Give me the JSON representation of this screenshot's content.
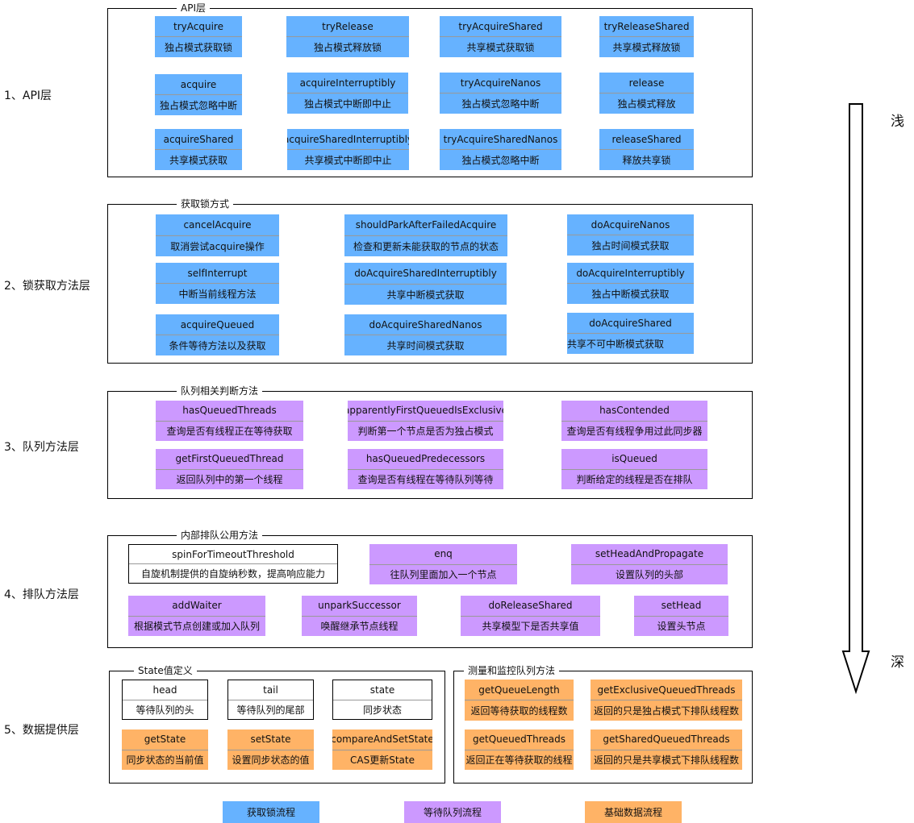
{
  "colors": {
    "acquire": "#66b2ff",
    "queue": "#cc99ff",
    "data": "#ffb366",
    "plain": "#ffffff"
  },
  "sections": [
    {
      "side_label": "1、API层",
      "frames": [
        {
          "title": "API层",
          "cards": [
            {
              "title": "tryAcquire",
              "desc": "独占模式获取锁",
              "kind": "acquire"
            },
            {
              "title": "tryRelease",
              "desc": "独占模式释放锁",
              "kind": "acquire"
            },
            {
              "title": "tryAcquireShared",
              "desc": "共享模式获取锁",
              "kind": "acquire"
            },
            {
              "title": "tryReleaseShared",
              "desc": "共享模式释放锁",
              "kind": "acquire"
            },
            {
              "title": "acquire",
              "desc": "独占模式忽略中断",
              "kind": "acquire"
            },
            {
              "title": "acquireInterruptibly",
              "desc": "独占模式中断即中止",
              "kind": "acquire"
            },
            {
              "title": "tryAcquireNanos",
              "desc": "独占模式忽略中断",
              "kind": "acquire"
            },
            {
              "title": "release",
              "desc": "独占模式释放",
              "kind": "acquire"
            },
            {
              "title": "acquireShared",
              "desc": "共享模式获取",
              "kind": "acquire"
            },
            {
              "title": "acquireSharedInterruptibly",
              "desc": "共享模式中断即中止",
              "kind": "acquire"
            },
            {
              "title": "tryAcquireSharedNanos",
              "desc": "独占模式忽略中断",
              "kind": "acquire"
            },
            {
              "title": "releaseShared",
              "desc": "释放共享锁",
              "kind": "acquire"
            }
          ]
        }
      ]
    },
    {
      "side_label": "2、锁获取方法层",
      "frames": [
        {
          "title": "获取锁方式",
          "cards": [
            {
              "title": "cancelAcquire",
              "desc": "取消尝试acquire操作",
              "kind": "acquire"
            },
            {
              "title": "selfInterrupt",
              "desc": "中断当前线程方法",
              "kind": "acquire"
            },
            {
              "title": "acquireQueued",
              "desc": "条件等待方法以及获取",
              "kind": "acquire"
            },
            {
              "title": "shouldParkAfterFailedAcquire",
              "desc": "检查和更新未能获取的节点的状态",
              "kind": "acquire"
            },
            {
              "title": "doAcquireSharedInterruptibly",
              "desc": "共享中断模式获取",
              "kind": "acquire"
            },
            {
              "title": "doAcquireSharedNanos",
              "desc": "共享时间模式获取",
              "kind": "acquire"
            },
            {
              "title": "doAcquireNanos",
              "desc": "独占时间模式获取",
              "kind": "acquire"
            },
            {
              "title": "doAcquireInterruptibly",
              "desc": "独占中断模式获取",
              "kind": "acquire"
            },
            {
              "title": "doAcquireShared",
              "desc": "共享不可中断模式获取",
              "kind": "acquire"
            }
          ]
        }
      ]
    },
    {
      "side_label": "3、队列方法层",
      "frames": [
        {
          "title": "队列相关判断方法",
          "cards": [
            {
              "title": "hasQueuedThreads",
              "desc": "查询是否有线程正在等待获取",
              "kind": "queue"
            },
            {
              "title": "getFirstQueuedThread",
              "desc": "返回队列中的第一个线程",
              "kind": "queue"
            },
            {
              "title": "apparentlyFirstQueuedIsExclusive",
              "desc": "判断第一个节点是否为独占模式",
              "kind": "queue"
            },
            {
              "title": "hasQueuedPredecessors",
              "desc": "查询是否有线程在等待队列等待",
              "kind": "queue"
            },
            {
              "title": "hasContended",
              "desc": "查询是否有线程争用过此同步器",
              "kind": "queue"
            },
            {
              "title": "isQueued",
              "desc": "判断给定的线程是否在排队",
              "kind": "queue"
            }
          ]
        }
      ]
    },
    {
      "side_label": "4、排队方法层",
      "frames": [
        {
          "title": "内部排队公用方法",
          "cards": [
            {
              "title": "spinForTimeoutThreshold",
              "desc": "自旋机制提供的自旋纳秒数，提高响应能力",
              "kind": "plain"
            },
            {
              "title": "enq",
              "desc": "往队列里面加入一个节点",
              "kind": "queue"
            },
            {
              "title": "setHeadAndPropagate",
              "desc": "设置队列的头部",
              "kind": "queue"
            },
            {
              "title": "addWaiter",
              "desc": "根据模式节点创建或加入队列",
              "kind": "queue"
            },
            {
              "title": "unparkSuccessor",
              "desc": "唤醒继承节点线程",
              "kind": "queue"
            },
            {
              "title": "doReleaseShared",
              "desc": "共享模型下是否共享值",
              "kind": "queue"
            },
            {
              "title": "setHead",
              "desc": "设置头节点",
              "kind": "queue"
            }
          ]
        }
      ]
    },
    {
      "side_label": "5、数据提供层",
      "frames": [
        {
          "title": "State值定义",
          "cards": [
            {
              "title": "head",
              "desc": "等待队列的头",
              "kind": "plain"
            },
            {
              "title": "tail",
              "desc": "等待队列的尾部",
              "kind": "plain"
            },
            {
              "title": "state",
              "desc": "同步状态",
              "kind": "plain"
            },
            {
              "title": "getState",
              "desc": "同步状态的当前值",
              "kind": "data"
            },
            {
              "title": "setState",
              "desc": "设置同步状态的值",
              "kind": "data"
            },
            {
              "title": "compareAndSetState",
              "desc": "CAS更新State",
              "kind": "data"
            }
          ]
        },
        {
          "title": "测量和监控队列方法",
          "cards": [
            {
              "title": "getQueueLength",
              "desc": "返回等待获取的线程数",
              "kind": "data"
            },
            {
              "title": "getExclusiveQueuedThreads",
              "desc": "返回的只是独占模式下排队线程数",
              "kind": "data"
            },
            {
              "title": "getQueuedThreads",
              "desc": "返回正在等待获取的线程",
              "kind": "data"
            },
            {
              "title": "getSharedQueuedThreads",
              "desc": "返回的只是共享模式下排队线程数",
              "kind": "data"
            }
          ]
        }
      ]
    }
  ],
  "depth": {
    "shallow": "浅",
    "deep": "深"
  },
  "legend": [
    {
      "label": "获取锁流程",
      "kind": "acquire"
    },
    {
      "label": "等待队列流程",
      "kind": "queue"
    },
    {
      "label": "基础数据流程",
      "kind": "data"
    }
  ]
}
